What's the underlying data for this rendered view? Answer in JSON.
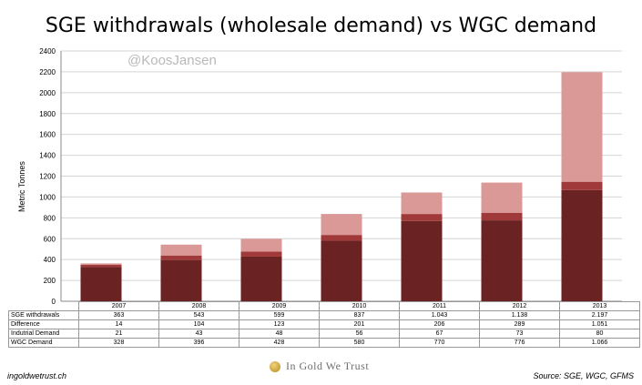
{
  "title": "SGE withdrawals (wholesale demand) vs WGC demand",
  "watermark": "@KoosJansen",
  "ylabel": "Metric Tonnes",
  "footer_left": "ingoldwetrust.ch",
  "footer_right": "Source: SGE, WGC, GFMS",
  "brand": "In Gold We Trust",
  "colors": {
    "wgc": "#6b2222",
    "industrial": "#a03a3a",
    "difference": "#da9896"
  },
  "chart_data": {
    "type": "bar",
    "stacked": true,
    "categories": [
      "2007",
      "2008",
      "2009",
      "2010",
      "2011",
      "2012",
      "2013"
    ],
    "ylim": [
      0,
      2400
    ],
    "yticks": [
      "0",
      "200",
      "400",
      "600",
      "800",
      "1000",
      "1200",
      "1400",
      "1600",
      "1800",
      "2000",
      "2200",
      "2400"
    ],
    "series": [
      {
        "name": "WGC Demand",
        "values": [
          328,
          396,
          428,
          580,
          770,
          776,
          1066
        ],
        "labels": [
          "328",
          "396",
          "428",
          "580",
          "770",
          "776",
          "1.066"
        ]
      },
      {
        "name": "Indutrial Demand",
        "values": [
          21,
          43,
          48,
          56,
          67,
          73,
          80
        ],
        "labels": [
          "21",
          "43",
          "48",
          "56",
          "67",
          "73",
          "80"
        ]
      },
      {
        "name": "Difference",
        "values": [
          14,
          104,
          123,
          201,
          206,
          289,
          1051
        ],
        "labels": [
          "14",
          "104",
          "123",
          "201",
          "206",
          "289",
          "1.051"
        ]
      }
    ],
    "totals": {
      "name": "SGE withdrawals",
      "values": [
        363,
        543,
        599,
        837,
        1043,
        1138,
        2197
      ],
      "labels": [
        "363",
        "543",
        "599",
        "837",
        "1.043",
        "1.138",
        "2.197"
      ]
    }
  }
}
